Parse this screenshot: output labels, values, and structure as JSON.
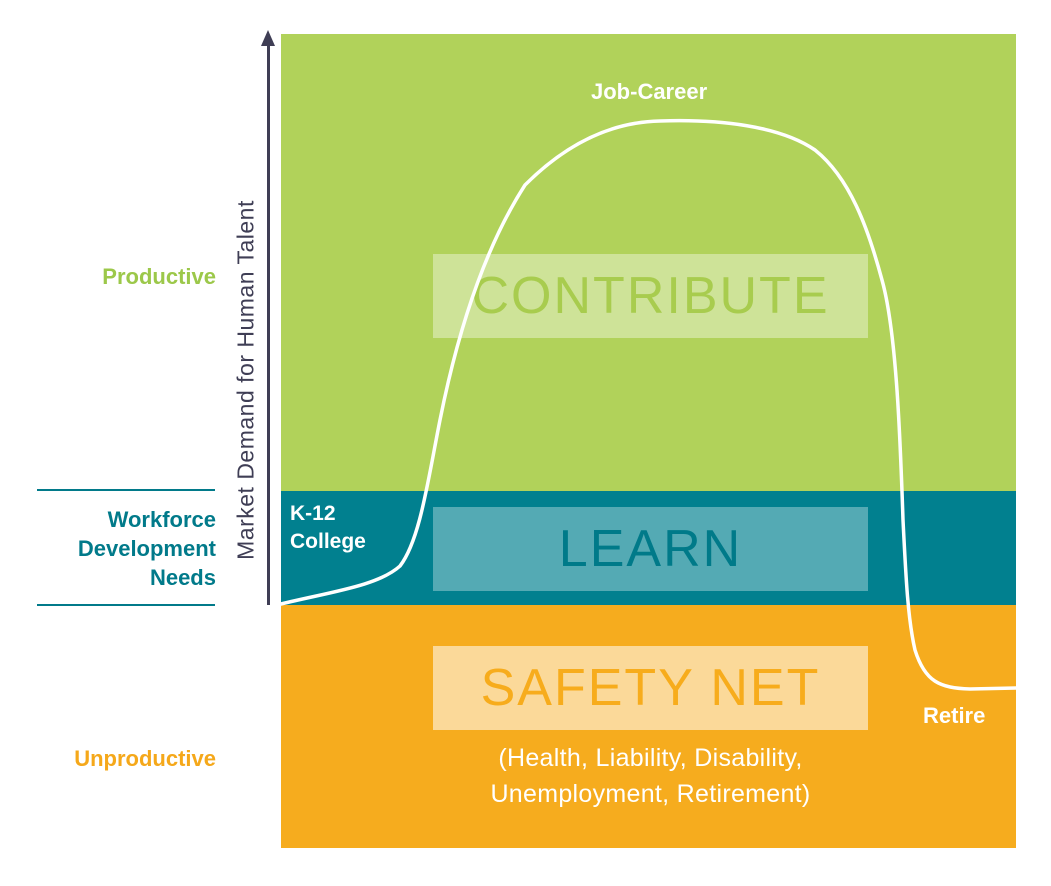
{
  "bands": {
    "contribute": {
      "label": "CONTRIBUTE",
      "color": "#b1d25a",
      "text_color": "#a8cc4e"
    },
    "learn": {
      "label": "LEARN",
      "color": "#01808f",
      "text_color": "#007a89"
    },
    "safety_net": {
      "label": "SAFETY NET",
      "color": "#f6ac1e",
      "text_color": "#f7ac1c",
      "subtext_line1": "(Health, Liability, Disability,",
      "subtext_line2": "Unemployment, Retirement)"
    }
  },
  "side_labels": {
    "productive": "Productive",
    "workforce_line1": "Workforce",
    "workforce_line2": "Development",
    "workforce_line3": "Needs",
    "unproductive": "Unproductive",
    "productive_color": "#9cc84a",
    "workforce_color": "#017a8a",
    "unproductive_color": "#f5a81a"
  },
  "axis": {
    "title": "Market Demand for Human Talent",
    "color": "#3f3e55"
  },
  "curve": {
    "color": "#ffffff",
    "labels": {
      "peak": "Job-Career",
      "start_line1": "K-12",
      "start_line2": "College",
      "end": "Retire"
    }
  }
}
